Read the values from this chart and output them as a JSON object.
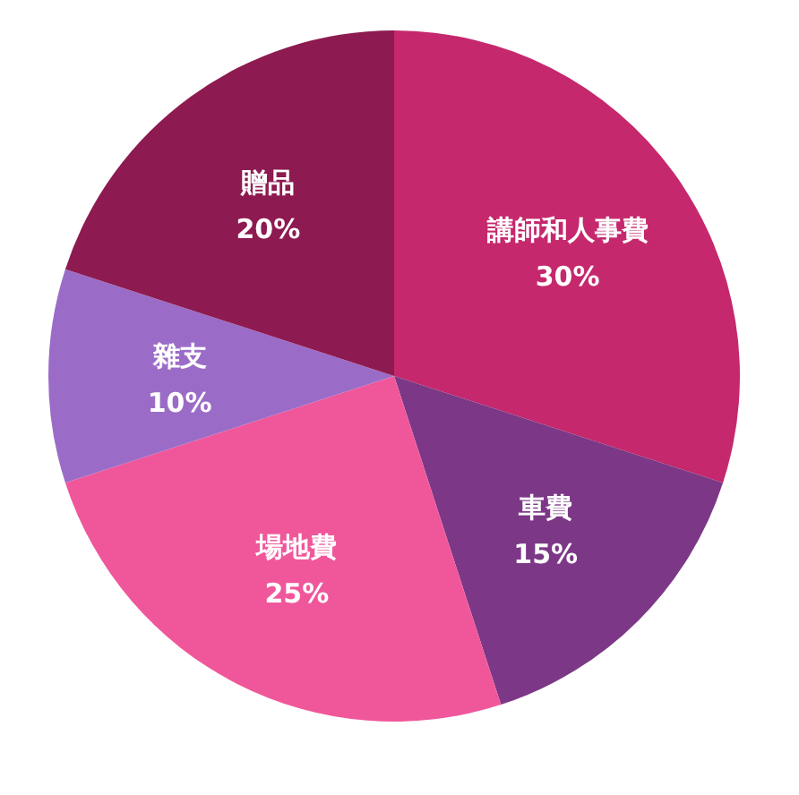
{
  "chart_data": {
    "type": "pie",
    "categories": [
      "講師和人事費",
      "車費",
      "場地費",
      "雜支",
      "贈品"
    ],
    "values": [
      30,
      15,
      25,
      10,
      20
    ],
    "value_labels": [
      "30%",
      "15%",
      "25%",
      "10%",
      "20%"
    ],
    "colors": [
      "#c5286c",
      "#7c3886",
      "#f0579b",
      "#9b6cc7",
      "#8d1a50"
    ]
  }
}
